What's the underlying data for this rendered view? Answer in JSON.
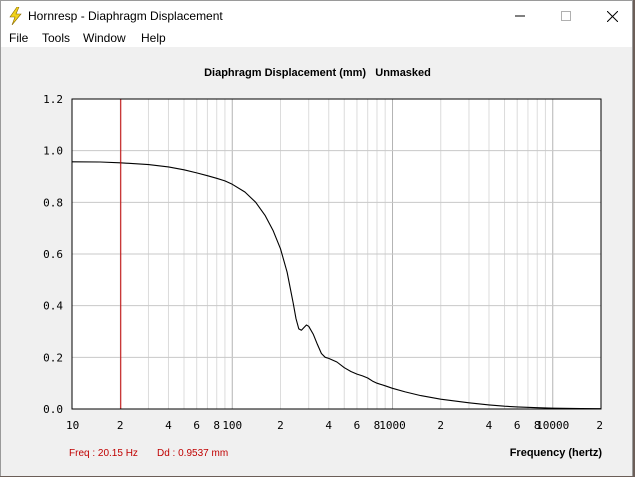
{
  "window": {
    "title": "Hornresp - Diaphragm Displacement"
  },
  "menu": [
    {
      "label": "File"
    },
    {
      "label": "Tools"
    },
    {
      "label": "Window"
    },
    {
      "label": "Help"
    }
  ],
  "colors": {
    "cursor": "#c00000",
    "curve": "#000000",
    "grid": "#c8c8c8",
    "readout": "#c00000"
  },
  "readout": {
    "freq": "Freq : 20.15 Hz",
    "dd": "Dd : 0.9537 mm"
  },
  "chart_data": {
    "type": "line",
    "title": "Diaphragm Displacement (mm)   Unmasked",
    "xlabel": "Frequency (hertz)",
    "ylabel": "",
    "xscale": "log",
    "xlim": [
      10,
      20000
    ],
    "ylim": [
      0,
      1.2
    ],
    "yticks": [
      "0.0",
      "0.2",
      "0.4",
      "0.6",
      "0.8",
      "1.0",
      "1.2"
    ],
    "xticks": [
      "10",
      "2",
      "4",
      "6",
      "8",
      "100",
      "2",
      "4",
      "6",
      "8",
      "1000",
      "2",
      "4",
      "6",
      "8",
      "10000",
      "2"
    ],
    "grid": true,
    "cursor_x": 20.15,
    "series": [
      {
        "x": [
          10,
          15,
          20,
          30,
          40,
          50,
          60,
          70,
          80,
          90,
          100,
          120,
          140,
          160,
          180,
          200,
          220,
          240,
          250,
          260,
          270,
          280,
          290,
          300,
          320,
          340,
          360,
          380,
          400,
          450,
          500,
          550,
          600,
          650,
          700,
          750,
          800,
          900,
          1000,
          1200,
          1500,
          2000,
          3000,
          4000,
          5000,
          6000,
          8000,
          10000,
          15000,
          20000
        ],
        "y": [
          0.957,
          0.956,
          0.953,
          0.946,
          0.937,
          0.926,
          0.914,
          0.903,
          0.893,
          0.883,
          0.87,
          0.84,
          0.8,
          0.75,
          0.69,
          0.62,
          0.53,
          0.41,
          0.35,
          0.31,
          0.305,
          0.315,
          0.325,
          0.32,
          0.29,
          0.25,
          0.215,
          0.2,
          0.196,
          0.182,
          0.16,
          0.145,
          0.135,
          0.128,
          0.12,
          0.108,
          0.1,
          0.09,
          0.08,
          0.066,
          0.052,
          0.038,
          0.024,
          0.016,
          0.011,
          0.008,
          0.005,
          0.003,
          0.0015,
          0.001
        ]
      }
    ]
  }
}
